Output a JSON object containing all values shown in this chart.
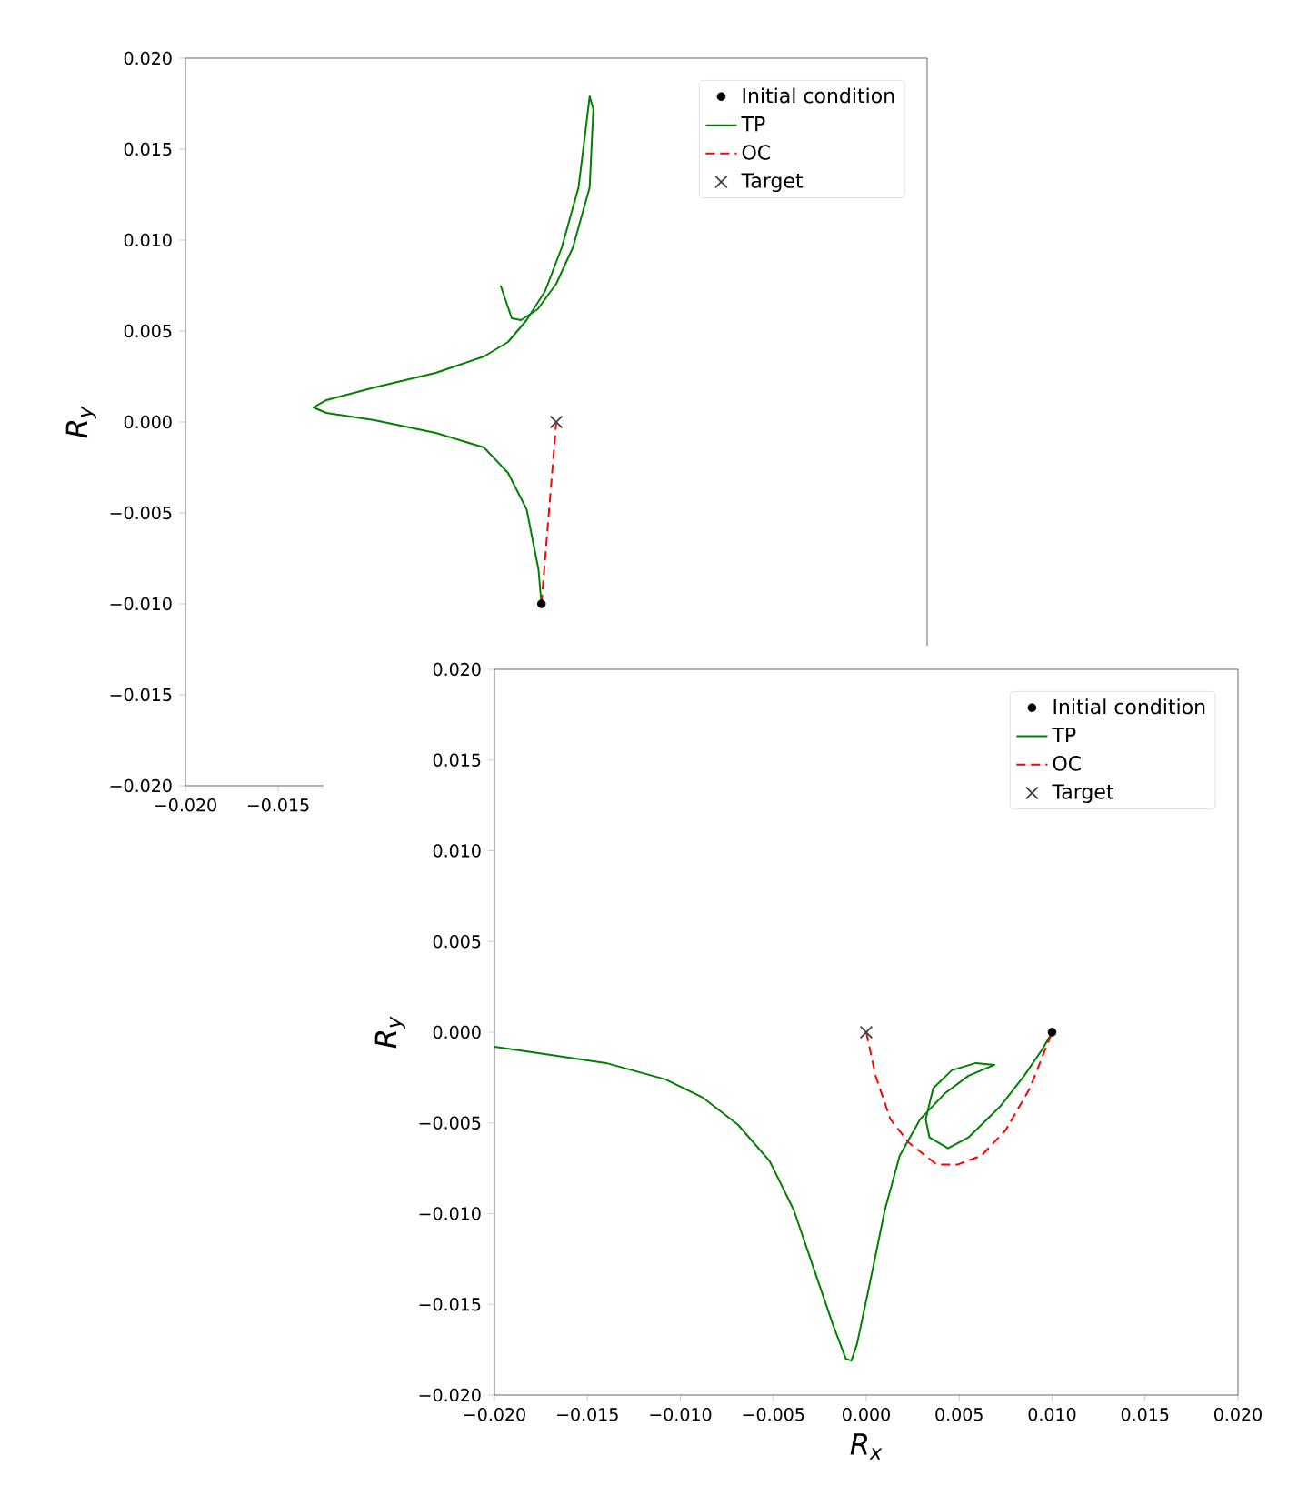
{
  "chart_data": [
    {
      "type": "line",
      "ylabel": "R$_{y}$",
      "xlim": [
        -0.02,
        0.02
      ],
      "ylim": [
        -0.02,
        0.02
      ],
      "xticks": [
        {
          "value": -0.02,
          "label": "−0.020"
        },
        {
          "value": -0.015,
          "label": "−0.015"
        }
      ],
      "yticks": [
        {
          "value": -0.02,
          "label": "−0.020"
        },
        {
          "value": -0.015,
          "label": "−0.015"
        },
        {
          "value": -0.01,
          "label": "−0.010"
        },
        {
          "value": -0.005,
          "label": "−0.005"
        },
        {
          "value": 0,
          "label": "0.000"
        },
        {
          "value": 0.005,
          "label": "0.005"
        },
        {
          "value": 0.01,
          "label": "0.010"
        },
        {
          "value": 0.015,
          "label": "0.015"
        },
        {
          "value": 0.02,
          "label": "0.020"
        }
      ],
      "legend": "top right",
      "series": [
        {
          "name": "Initial condition",
          "type": "scatter",
          "marker": "circle",
          "color": "#000000",
          "x": [
            -0.0008
          ],
          "values": [
            -0.01
          ]
        },
        {
          "name": "TP",
          "type": "line",
          "color": "#008000",
          "x": [
            -0.0008,
            -0.00096,
            -0.0016,
            -0.0026,
            -0.0039,
            -0.0065,
            -0.0098,
            -0.0124,
            -0.0131,
            -0.0124,
            -0.0098,
            -0.0065,
            -0.0039,
            -0.0026,
            -0.0016,
            -0.0006,
            0.0003,
            0.0012,
            0.0016,
            0.0018,
            0.002,
            0.0018,
            0.0009,
            0.0,
            -0.001,
            -0.0019,
            -0.0024,
            -0.0027,
            -0.003
          ],
          "values": [
            -0.01,
            -0.0081,
            -0.0048,
            -0.0028,
            -0.0014,
            -0.0006,
            0.0001,
            0.0005,
            0.0008,
            0.0012,
            0.0019,
            0.0027,
            0.0036,
            0.0044,
            0.0056,
            0.0072,
            0.0096,
            0.0129,
            0.0162,
            0.0179,
            0.0172,
            0.0129,
            0.0096,
            0.0076,
            0.0062,
            0.0056,
            0.0057,
            0.0066,
            0.0075
          ]
        },
        {
          "name": "OC",
          "type": "line",
          "line_style": "dashed",
          "color": "#ff0000",
          "x": [
            -0.0008,
            -0.0004,
            0.0
          ],
          "values": [
            -0.01,
            -0.005,
            0.0
          ]
        },
        {
          "name": "Target",
          "type": "scatter",
          "marker": "cross",
          "color": "#404040",
          "x": [
            0.0
          ],
          "values": [
            0.0
          ]
        }
      ]
    },
    {
      "type": "line",
      "xlabel": "R$_{x}$",
      "ylabel": "R$_{y}$",
      "xlim": [
        -0.02,
        0.02
      ],
      "ylim": [
        -0.02,
        0.02
      ],
      "xticks": [
        {
          "value": -0.02,
          "label": "−0.020"
        },
        {
          "value": -0.015,
          "label": "−0.015"
        },
        {
          "value": -0.01,
          "label": "−0.010"
        },
        {
          "value": -0.005,
          "label": "−0.005"
        },
        {
          "value": 0,
          "label": "0.000"
        },
        {
          "value": 0.005,
          "label": "0.005"
        },
        {
          "value": 0.01,
          "label": "0.010"
        },
        {
          "value": 0.015,
          "label": "0.015"
        },
        {
          "value": 0.02,
          "label": "0.020"
        }
      ],
      "yticks": [
        {
          "value": -0.02,
          "label": "−0.020"
        },
        {
          "value": -0.015,
          "label": "−0.015"
        },
        {
          "value": -0.01,
          "label": "−0.010"
        },
        {
          "value": -0.005,
          "label": "−0.005"
        },
        {
          "value": 0,
          "label": "0.000"
        },
        {
          "value": 0.005,
          "label": "0.005"
        },
        {
          "value": 0.01,
          "label": "0.010"
        },
        {
          "value": 0.015,
          "label": "0.015"
        },
        {
          "value": 0.02,
          "label": "0.020"
        }
      ],
      "legend": "top right",
      "series": [
        {
          "name": "Initial condition",
          "type": "scatter",
          "marker": "circle",
          "color": "#000000",
          "x": [
            0.01
          ],
          "values": [
            0.0
          ]
        },
        {
          "name": "TP",
          "type": "line",
          "color": "#008000",
          "x": [
            -0.02,
            -0.0173,
            -0.014,
            -0.0108,
            -0.0088,
            -0.0069,
            -0.0052,
            -0.0039,
            -0.0028,
            -0.0018,
            -0.0011,
            -0.0008,
            -0.0005,
            0.0002,
            0.001,
            0.0018,
            0.0029,
            0.0042,
            0.0055,
            0.0069,
            0.0059,
            0.0046,
            0.0036,
            0.0032,
            0.0034,
            0.0044,
            0.0055,
            0.0072,
            0.0085,
            0.0095,
            0.01
          ],
          "values": [
            -0.0008,
            -0.0012,
            -0.0017,
            -0.0026,
            -0.0036,
            -0.0051,
            -0.0071,
            -0.0098,
            -0.0131,
            -0.0161,
            -0.018,
            -0.0181,
            -0.0172,
            -0.0138,
            -0.0098,
            -0.0068,
            -0.0048,
            -0.0034,
            -0.0024,
            -0.0018,
            -0.0017,
            -0.0021,
            -0.0031,
            -0.0048,
            -0.0058,
            -0.0064,
            -0.0058,
            -0.0041,
            -0.0024,
            -0.0009,
            0.0
          ]
        },
        {
          "name": "OC",
          "type": "line",
          "line_style": "dashed",
          "color": "#ff0000",
          "x": [
            0.0,
            0.0005,
            0.0013,
            0.0023,
            0.0038,
            0.0049,
            0.0062,
            0.0075,
            0.0088,
            0.01
          ],
          "values": [
            0.0,
            -0.0024,
            -0.0048,
            -0.0061,
            -0.0073,
            -0.0073,
            -0.0068,
            -0.0054,
            -0.0031,
            0.0
          ]
        },
        {
          "name": "Target",
          "type": "scatter",
          "marker": "cross",
          "color": "#404040",
          "x": [
            0.0
          ],
          "values": [
            0.0
          ]
        }
      ]
    }
  ]
}
